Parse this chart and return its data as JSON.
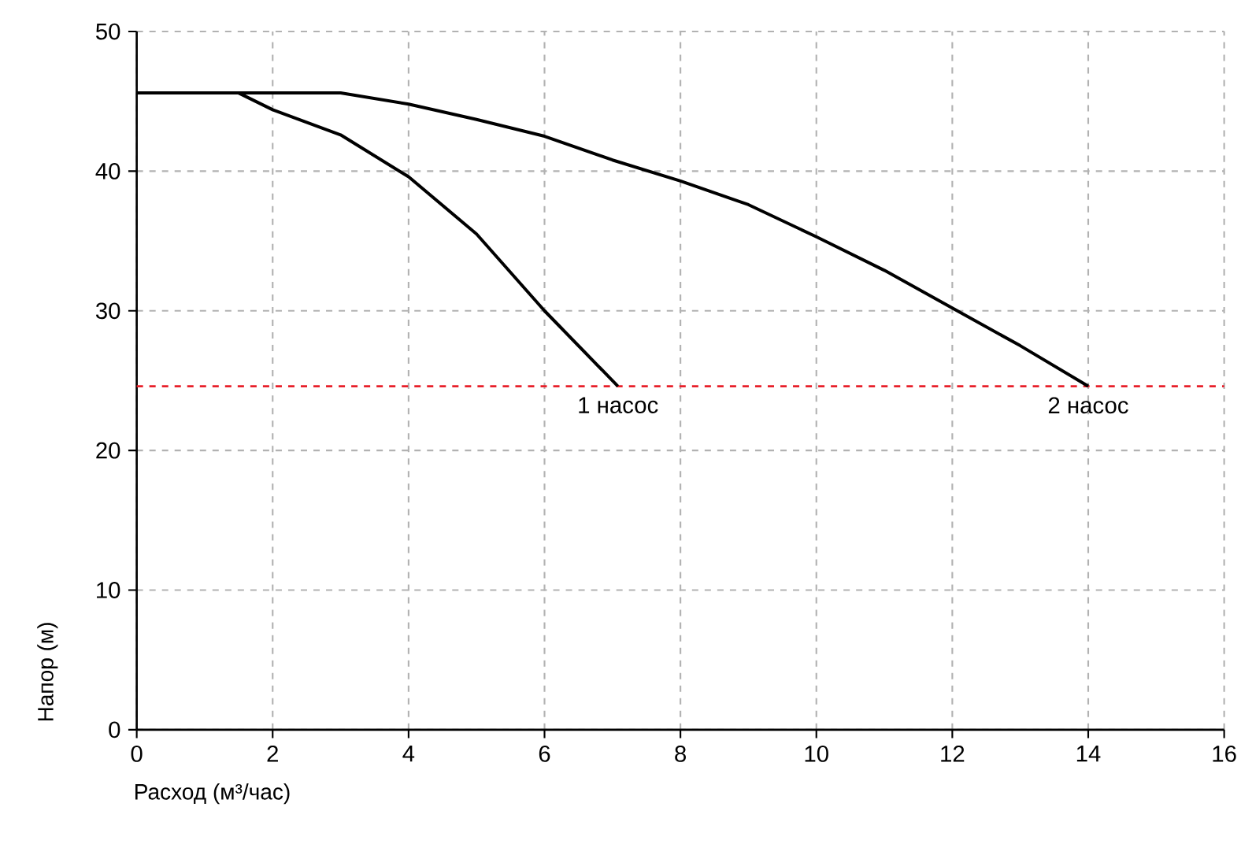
{
  "chart_data": {
    "type": "line",
    "xlabel": "Расход (м³/час)",
    "ylabel": "Напор (м)",
    "xlim": [
      0,
      16
    ],
    "ylim": [
      0,
      50
    ],
    "xticks": [
      0,
      2,
      4,
      6,
      8,
      10,
      12,
      14,
      16
    ],
    "yticks": [
      0,
      10,
      20,
      30,
      40,
      50
    ],
    "grid": true,
    "line_style": "solid",
    "marker": "none",
    "series": [
      {
        "color": "#000000",
        "x": [
          0,
          1.5,
          2,
          3,
          4,
          5,
          6,
          7.08
        ],
        "values": [
          45.6,
          45.6,
          44.4,
          42.6,
          39.6,
          35.5,
          30.0,
          24.6
        ]
      },
      {
        "color": "#000000",
        "x": [
          0,
          3,
          4,
          5,
          6,
          7,
          8,
          9,
          10,
          11,
          12,
          13,
          14
        ],
        "values": [
          45.6,
          45.6,
          44.8,
          43.7,
          42.5,
          40.8,
          39.3,
          37.6,
          35.3,
          32.9,
          30.2,
          27.5,
          24.6
        ]
      }
    ],
    "ref_lines": [
      {
        "axis": "y",
        "value": 24.6,
        "color": "#e8202a",
        "line_style": "dashed"
      }
    ],
    "annotations": [
      {
        "text": "1 насос",
        "x": 7.08,
        "y": 24.6
      },
      {
        "text": "2 насос",
        "x": 14,
        "y": 24.6
      }
    ]
  }
}
